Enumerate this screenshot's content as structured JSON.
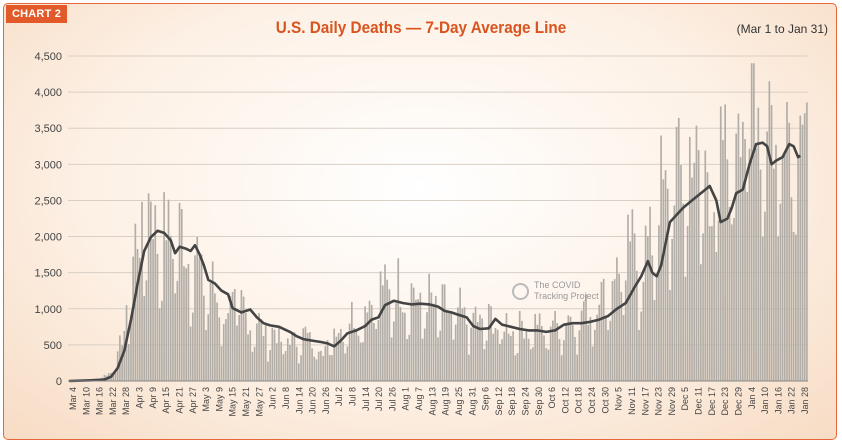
{
  "badge": "CHART 2",
  "title": "U.S. Daily Deaths — 7-Day Average Line",
  "date_range": "(Mar 1 to Jan 31)",
  "watermark": {
    "line1": "The COVID",
    "line2": "Tracking Project"
  },
  "colors": {
    "accent": "#e35a2a",
    "bars": "#b2aea7",
    "line": "#444444",
    "grid": "#d8cfc6"
  },
  "chart_data": {
    "type": "bar",
    "title": "U.S. Daily Deaths — 7-Day Average Line",
    "xlabel": "",
    "ylabel": "",
    "ylim": [
      0,
      4500
    ],
    "yticks": [
      0,
      500,
      1000,
      1500,
      2000,
      2500,
      3000,
      3500,
      4000,
      4500
    ],
    "ytick_labels": [
      "0",
      "500",
      "1,000",
      "1,500",
      "2,000",
      "2,500",
      "3,000",
      "3,500",
      "4,000",
      "4,500"
    ],
    "grid": true,
    "x_tick_labels": [
      "Mar 4",
      "Mar 10",
      "Mar 16",
      "Mar 22",
      "Mar 28",
      "Apr 3",
      "Apr 9",
      "Apr 15",
      "Apr 21",
      "Apr 27",
      "May 3",
      "May 9",
      "May 15",
      "May 21",
      "May 27",
      "Jun 2",
      "Jun 8",
      "Jun 14",
      "Jun 20",
      "Jun 26",
      "Jul 2",
      "Jul 8",
      "Jul 14",
      "Jul 20",
      "Jul 26",
      "Aug 1",
      "Aug 7",
      "Aug 13",
      "Aug 19",
      "Aug 25",
      "Aug 31",
      "Sep 6",
      "Sep 12",
      "Sep 18",
      "Sep 24",
      "Sep 30",
      "Oct 6",
      "Oct 12",
      "Oct 18",
      "Oct 24",
      "Oct 30",
      "Nov 5",
      "Nov 11",
      "Nov 17",
      "Nov 23",
      "Nov 29",
      "Dec 5",
      "Dec 11",
      "Dec 17",
      "Dec 23",
      "Dec 29",
      "Jan 4",
      "Jan 10",
      "Jan 16",
      "Jan 22",
      "Jan 28"
    ],
    "series": [
      {
        "kind": "bar",
        "description_key": "daily",
        "anchors": [
          [
            0,
            0
          ],
          [
            7,
            5
          ],
          [
            14,
            30
          ],
          [
            19,
            120
          ],
          [
            22,
            300
          ],
          [
            25,
            700
          ],
          [
            28,
            1300
          ],
          [
            31,
            1900
          ],
          [
            34,
            2200
          ],
          [
            37,
            2300
          ],
          [
            40,
            2000
          ],
          [
            44,
            1900
          ],
          [
            48,
            2100
          ],
          [
            52,
            1800
          ],
          [
            56,
            1700
          ],
          [
            60,
            1400
          ],
          [
            64,
            1250
          ],
          [
            68,
            1050
          ],
          [
            72,
            900
          ],
          [
            76,
            1150
          ],
          [
            80,
            850
          ],
          [
            85,
            750
          ],
          [
            90,
            650
          ],
          [
            95,
            600
          ],
          [
            100,
            520
          ],
          [
            105,
            600
          ],
          [
            110,
            550
          ],
          [
            115,
            420
          ],
          [
            120,
            650
          ],
          [
            125,
            750
          ],
          [
            130,
            850
          ],
          [
            135,
            1000
          ],
          [
            140,
            1200
          ],
          [
            145,
            1250
          ],
          [
            150,
            1200
          ],
          [
            155,
            1150
          ],
          [
            160,
            1050
          ],
          [
            165,
            1050
          ],
          [
            170,
            950
          ],
          [
            175,
            900
          ],
          [
            180,
            850
          ],
          [
            185,
            800
          ],
          [
            190,
            800
          ],
          [
            195,
            750
          ],
          [
            200,
            720
          ],
          [
            205,
            700
          ],
          [
            210,
            750
          ],
          [
            215,
            700
          ],
          [
            220,
            750
          ],
          [
            225,
            800
          ],
          [
            230,
            850
          ],
          [
            235,
            950
          ],
          [
            240,
            1100
          ],
          [
            245,
            1300
          ],
          [
            250,
            1500
          ],
          [
            255,
            1800
          ],
          [
            260,
            1500
          ],
          [
            265,
            2200
          ],
          [
            270,
            2500
          ],
          [
            275,
            2700
          ],
          [
            280,
            2900
          ],
          [
            285,
            3000
          ],
          [
            290,
            2500
          ],
          [
            295,
            2800
          ],
          [
            300,
            3300
          ],
          [
            305,
            3800
          ],
          [
            310,
            3900
          ],
          [
            315,
            3600
          ],
          [
            320,
            3300
          ],
          [
            325,
            3600
          ],
          [
            330,
            3500
          ],
          [
            334,
            3300
          ]
        ]
      },
      {
        "kind": "line",
        "description_key": "avg7",
        "anchors": [
          [
            0,
            0
          ],
          [
            10,
            10
          ],
          [
            16,
            20
          ],
          [
            19,
            60
          ],
          [
            22,
            180
          ],
          [
            25,
            420
          ],
          [
            28,
            850
          ],
          [
            31,
            1350
          ],
          [
            34,
            1800
          ],
          [
            37,
            1990
          ],
          [
            40,
            2080
          ],
          [
            43,
            2050
          ],
          [
            46,
            1950
          ],
          [
            48,
            1770
          ],
          [
            50,
            1860
          ],
          [
            53,
            1830
          ],
          [
            55,
            1800
          ],
          [
            57,
            1880
          ],
          [
            59,
            1760
          ],
          [
            61,
            1600
          ],
          [
            63,
            1400
          ],
          [
            66,
            1350
          ],
          [
            69,
            1250
          ],
          [
            72,
            1200
          ],
          [
            74,
            1010
          ],
          [
            78,
            950
          ],
          [
            82,
            990
          ],
          [
            85,
            880
          ],
          [
            88,
            800
          ],
          [
            91,
            770
          ],
          [
            95,
            750
          ],
          [
            100,
            680
          ],
          [
            103,
            620
          ],
          [
            106,
            580
          ],
          [
            110,
            560
          ],
          [
            114,
            540
          ],
          [
            117,
            520
          ],
          [
            120,
            480
          ],
          [
            123,
            560
          ],
          [
            126,
            660
          ],
          [
            130,
            700
          ],
          [
            134,
            760
          ],
          [
            137,
            850
          ],
          [
            140,
            880
          ],
          [
            143,
            1050
          ],
          [
            147,
            1110
          ],
          [
            151,
            1080
          ],
          [
            155,
            1060
          ],
          [
            159,
            1070
          ],
          [
            163,
            1060
          ],
          [
            167,
            1030
          ],
          [
            170,
            970
          ],
          [
            173,
            950
          ],
          [
            176,
            920
          ],
          [
            180,
            880
          ],
          [
            183,
            760
          ],
          [
            186,
            720
          ],
          [
            190,
            730
          ],
          [
            193,
            860
          ],
          [
            196,
            780
          ],
          [
            200,
            750
          ],
          [
            204,
            720
          ],
          [
            208,
            700
          ],
          [
            212,
            700
          ],
          [
            216,
            680
          ],
          [
            220,
            700
          ],
          [
            224,
            780
          ],
          [
            228,
            800
          ],
          [
            232,
            800
          ],
          [
            236,
            820
          ],
          [
            240,
            850
          ],
          [
            244,
            900
          ],
          [
            248,
            1000
          ],
          [
            252,
            1080
          ],
          [
            256,
            1300
          ],
          [
            259,
            1450
          ],
          [
            262,
            1660
          ],
          [
            264,
            1500
          ],
          [
            266,
            1450
          ],
          [
            268,
            1600
          ],
          [
            270,
            1900
          ],
          [
            272,
            2200
          ],
          [
            275,
            2300
          ],
          [
            278,
            2400
          ],
          [
            282,
            2500
          ],
          [
            286,
            2600
          ],
          [
            290,
            2700
          ],
          [
            293,
            2500
          ],
          [
            295,
            2200
          ],
          [
            298,
            2250
          ],
          [
            300,
            2400
          ],
          [
            302,
            2600
          ],
          [
            305,
            2650
          ],
          [
            308,
            3000
          ],
          [
            311,
            3280
          ],
          [
            314,
            3300
          ],
          [
            316,
            3250
          ],
          [
            318,
            3000
          ],
          [
            320,
            3050
          ],
          [
            323,
            3100
          ],
          [
            326,
            3280
          ],
          [
            328,
            3250
          ],
          [
            330,
            3100
          ],
          [
            331,
            3120
          ]
        ]
      }
    ],
    "legend": "none"
  }
}
